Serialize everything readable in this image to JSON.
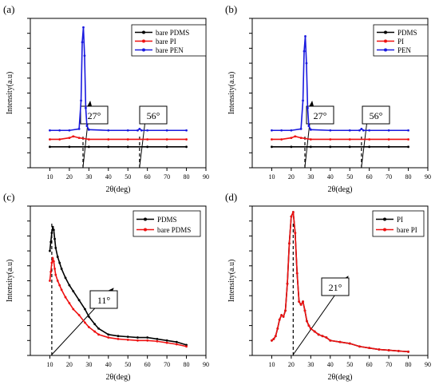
{
  "figure": {
    "panel_labels": [
      "(a)",
      "(b)",
      "(c)",
      "(d)"
    ]
  },
  "chart_data": [
    {
      "type": "line",
      "panel": "(a)",
      "xlabel": "2θ(deg)",
      "ylabel": "Intensity(a.u)",
      "xlim": [
        0,
        90
      ],
      "xticks": [
        10,
        20,
        30,
        40,
        50,
        60,
        70,
        80,
        90
      ],
      "ylim": [
        0,
        100
      ],
      "yticks": [
        0,
        10,
        20,
        30,
        40,
        50,
        60,
        70,
        80,
        90,
        100
      ],
      "y_tick_labels": false,
      "grid": false,
      "legend_position": "top-right",
      "colors": {
        "bare PDMS": "#000000",
        "bare PI": "#ee1111",
        "bare PEN": "#1a1adf"
      },
      "series": [
        {
          "name": "bare PDMS",
          "x": [
            10,
            20,
            30,
            40,
            50,
            60,
            70,
            80
          ],
          "y": [
            14,
            14,
            14,
            14,
            14,
            14,
            14,
            14
          ]
        },
        {
          "name": "bare PI",
          "x": [
            10,
            15,
            20,
            22,
            25,
            30,
            40,
            50,
            60,
            70,
            80
          ],
          "y": [
            19,
            19,
            20,
            21,
            20,
            19,
            19,
            19,
            19,
            19,
            19
          ]
        },
        {
          "name": "bare PEN",
          "x": [
            10,
            15,
            20,
            25,
            26,
            26.6,
            27.2,
            27.8,
            28.4,
            29,
            30,
            40,
            50,
            55,
            56,
            57,
            60,
            70,
            80
          ],
          "y": [
            25,
            25,
            25,
            26,
            45,
            84,
            94,
            75,
            40,
            28,
            25.5,
            25,
            25,
            25,
            26,
            25,
            25,
            25,
            25
          ]
        }
      ],
      "annotations": [
        {
          "text": "27°",
          "x": 27,
          "arrow": true
        },
        {
          "text": "56°",
          "x": 56,
          "arrow": true
        }
      ]
    },
    {
      "type": "line",
      "panel": "(b)",
      "xlabel": "2θ(deg)",
      "ylabel": "Intensity(a.u)",
      "xlim": [
        0,
        90
      ],
      "xticks": [
        10,
        20,
        30,
        40,
        50,
        60,
        70,
        80,
        90
      ],
      "ylim": [
        0,
        100
      ],
      "yticks": [
        0,
        10,
        20,
        30,
        40,
        50,
        60,
        70,
        80,
        90,
        100
      ],
      "y_tick_labels": false,
      "grid": false,
      "legend_position": "top-right",
      "colors": {
        "PDMS": "#000000",
        "PI": "#ee1111",
        "PEN": "#1a1adf"
      },
      "series": [
        {
          "name": "PDMS",
          "x": [
            10,
            20,
            30,
            40,
            50,
            60,
            70,
            80
          ],
          "y": [
            14,
            14,
            14,
            14,
            14,
            14,
            14,
            14
          ]
        },
        {
          "name": "PI",
          "x": [
            10,
            15,
            20,
            22,
            25,
            30,
            40,
            50,
            60,
            70,
            80
          ],
          "y": [
            19,
            19,
            20,
            21,
            20,
            19,
            19,
            19,
            19,
            19,
            19
          ]
        },
        {
          "name": "PEN",
          "x": [
            10,
            15,
            20,
            25,
            26,
            26.6,
            27.2,
            27.8,
            28.4,
            29,
            30,
            40,
            50,
            55,
            56,
            57,
            60,
            70,
            80
          ],
          "y": [
            25,
            25,
            25,
            26,
            45,
            78,
            88,
            70,
            40,
            28,
            25.5,
            25,
            25,
            25,
            26,
            25,
            25,
            25,
            25
          ]
        }
      ],
      "annotations": [
        {
          "text": "27°",
          "x": 27,
          "arrow": true
        },
        {
          "text": "56°",
          "x": 56,
          "arrow": true
        }
      ]
    },
    {
      "type": "line",
      "panel": "(c)",
      "xlabel": "2θ(deg)",
      "ylabel": "Intensity(a.u)",
      "xlim": [
        0,
        90
      ],
      "xticks": [
        10,
        20,
        30,
        40,
        50,
        60,
        70,
        80,
        90
      ],
      "ylim": [
        0,
        100
      ],
      "yticks": [
        0,
        10,
        20,
        30,
        40,
        50,
        60,
        70,
        80,
        90,
        100
      ],
      "y_tick_labels": false,
      "grid": false,
      "legend_position": "top-right",
      "colors": {
        "PDMS": "#000000",
        "bare PDMS": "#ee1111"
      },
      "series": [
        {
          "name": "PDMS",
          "x": [
            10,
            10.5,
            11,
            11.5,
            12,
            12.5,
            13,
            14,
            15,
            16,
            18,
            20,
            22,
            25,
            28,
            30,
            33,
            35,
            40,
            45,
            50,
            55,
            60,
            65,
            70,
            75,
            80
          ],
          "y": [
            70,
            76,
            82,
            86,
            84,
            78,
            72,
            66,
            62,
            58,
            52,
            47,
            43,
            37,
            31,
            26,
            21,
            18,
            14,
            13,
            12.5,
            12,
            12,
            11,
            10,
            9,
            7
          ]
        },
        {
          "name": "bare PDMS",
          "x": [
            10,
            10.5,
            11,
            11.5,
            12,
            12.5,
            13,
            14,
            15,
            16,
            18,
            20,
            22,
            25,
            28,
            30,
            33,
            35,
            40,
            45,
            50,
            55,
            60,
            65,
            70,
            75,
            80
          ],
          "y": [
            50,
            56,
            62,
            65,
            63,
            58,
            54,
            50,
            47,
            44,
            39,
            35,
            31,
            27,
            22,
            19,
            16,
            14,
            12,
            11,
            10.5,
            10,
            10,
            9.5,
            8.5,
            7.5,
            6
          ]
        }
      ],
      "annotations": [
        {
          "text": "11°",
          "x": 11,
          "arrow": true
        }
      ]
    },
    {
      "type": "line",
      "panel": "(d)",
      "xlabel": "2θ(deg)",
      "ylabel": "Intensity(a.u)",
      "xlim": [
        0,
        90
      ],
      "xticks": [
        10,
        20,
        30,
        40,
        50,
        60,
        70,
        80,
        90
      ],
      "ylim": [
        0,
        100
      ],
      "yticks": [
        0,
        10,
        20,
        30,
        40,
        50,
        60,
        70,
        80,
        90,
        100
      ],
      "y_tick_labels": false,
      "grid": false,
      "legend_position": "top-right",
      "colors": {
        "PI": "#000000",
        "bare PI": "#ee1111"
      },
      "series": [
        {
          "name": "PI",
          "x": [
            10,
            11,
            12,
            13,
            14,
            15,
            16,
            17,
            18,
            19,
            20,
            21,
            22,
            23,
            24,
            25,
            26,
            27,
            28,
            29,
            30,
            32,
            34,
            36,
            38,
            40,
            45,
            50,
            55,
            60,
            65,
            70,
            75,
            80
          ],
          "y": [
            10,
            11,
            13,
            18,
            24,
            27,
            26,
            30,
            48,
            75,
            93,
            96,
            82,
            55,
            36,
            34,
            36,
            30,
            23,
            20,
            18,
            16,
            14,
            13,
            12,
            10,
            9,
            8,
            6,
            5,
            4,
            3.5,
            3,
            2.5
          ]
        },
        {
          "name": "bare PI",
          "x": [
            10,
            11,
            12,
            13,
            14,
            15,
            16,
            17,
            18,
            19,
            20,
            21,
            22,
            23,
            24,
            25,
            26,
            27,
            28,
            29,
            30,
            32,
            34,
            36,
            38,
            40,
            45,
            50,
            55,
            60,
            65,
            70,
            75,
            80
          ],
          "y": [
            10,
            11,
            13,
            18,
            24,
            27,
            26,
            30,
            48,
            75,
            93,
            96,
            82,
            55,
            36,
            34,
            36,
            30,
            23,
            20,
            18,
            16,
            14,
            13,
            12,
            10,
            9,
            8,
            6,
            5,
            4,
            3.5,
            3,
            2.5
          ]
        }
      ],
      "annotations": [
        {
          "text": "21°",
          "x": 21,
          "arrow": true
        }
      ]
    }
  ]
}
